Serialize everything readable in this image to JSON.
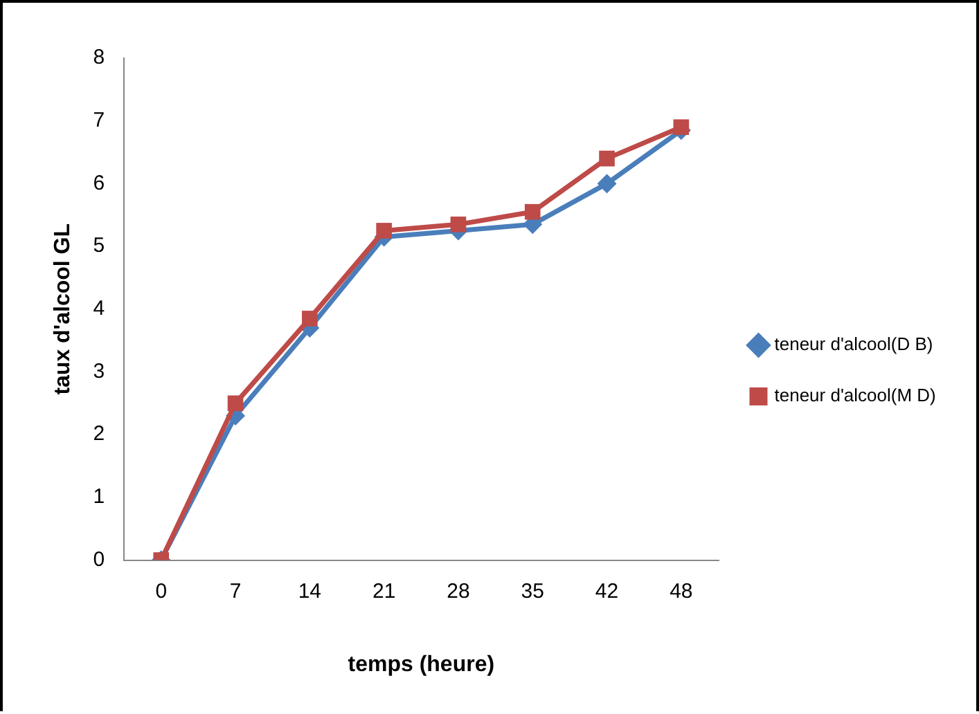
{
  "chart_data": {
    "type": "line",
    "xlabel": "temps (heure)",
    "ylabel": "taux d'alcool GL",
    "categories": [
      "0",
      "7",
      "14",
      "21",
      "28",
      "35",
      "42",
      "48"
    ],
    "series": [
      {
        "name": "teneur d'alcool(D B)",
        "color": "#4a7ebb",
        "marker": "diamond",
        "values": [
          0,
          2.3,
          3.7,
          5.15,
          5.25,
          5.35,
          6.0,
          6.85
        ]
      },
      {
        "name": "teneur d'alcool(M D)",
        "color": "#be4b48",
        "marker": "square",
        "values": [
          0,
          2.5,
          3.85,
          5.25,
          5.35,
          5.55,
          6.4,
          6.9
        ]
      }
    ],
    "ylim": [
      0,
      8
    ],
    "yticks": [
      0,
      1,
      2,
      3,
      4,
      5,
      6,
      7,
      8
    ],
    "grid": false,
    "legend": "right",
    "line_style": "solid"
  }
}
